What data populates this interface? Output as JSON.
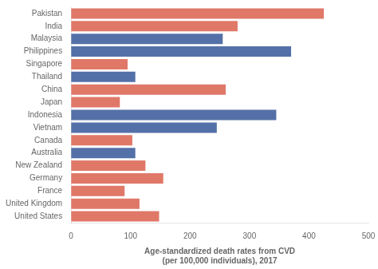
{
  "chart_data": {
    "type": "bar",
    "orientation": "horizontal",
    "categories": [
      "Pakistan",
      "India",
      "Malaysia",
      "Philippines",
      "Singapore",
      "Thailand",
      "China",
      "Japan",
      "Indonesia",
      "Vietnam",
      "Canada",
      "Australia",
      "New Zealand",
      "Germany",
      "France",
      "United Kingdom",
      "United States"
    ],
    "values": [
      425,
      280,
      255,
      370,
      95,
      108,
      260,
      82,
      345,
      245,
      103,
      108,
      125,
      155,
      90,
      115,
      148
    ],
    "colors": [
      "#E07868",
      "#E07868",
      "#5470A8",
      "#5470A8",
      "#E07868",
      "#5470A8",
      "#E07868",
      "#E07868",
      "#5470A8",
      "#5470A8",
      "#E07868",
      "#5470A8",
      "#E07868",
      "#E07868",
      "#E07868",
      "#E07868",
      "#E07868"
    ],
    "xlabel": "Age-standardized death rates from CVD\n(per 100,000 individuals), 2017",
    "xlim": [
      0,
      500
    ],
    "xticks": [
      0,
      100,
      200,
      300,
      400,
      500
    ],
    "grid": false
  }
}
